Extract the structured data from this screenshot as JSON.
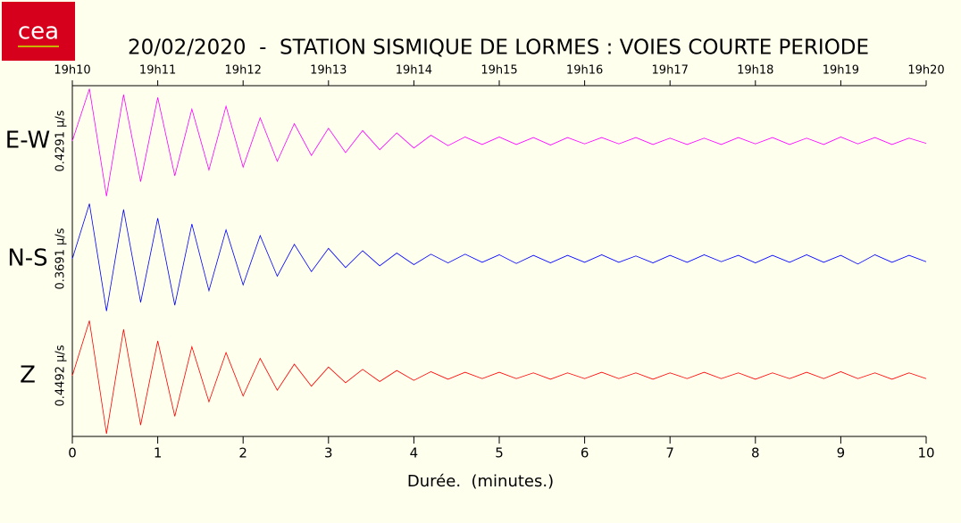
{
  "logo": "cea",
  "chart_data": {
    "type": "seismogram",
    "title": "20/02/2020  -  STATION SISMIQUE DE LORMES : VOIES COURTE PERIODE",
    "x_label": "Durée.  (minutes.)",
    "xlim": [
      0,
      10
    ],
    "xticks": [
      0,
      1,
      2,
      3,
      4,
      5,
      6,
      7,
      8,
      9,
      10
    ],
    "x2ticks": [
      {
        "value": 0,
        "label": "19h10"
      },
      {
        "value": 1,
        "label": "19h11"
      },
      {
        "value": 2,
        "label": "19h12"
      },
      {
        "value": 3,
        "label": "19h13"
      },
      {
        "value": 4,
        "label": "19h14"
      },
      {
        "value": 5,
        "label": "19h15"
      },
      {
        "value": 6,
        "label": "19h16"
      },
      {
        "value": 7,
        "label": "19h17"
      },
      {
        "value": 8,
        "label": "19h18"
      },
      {
        "value": 9,
        "label": "19h19"
      },
      {
        "value": 10,
        "label": "19h20"
      }
    ],
    "ylim": [
      -1,
      1
    ],
    "x": [
      0,
      0.2,
      0.4,
      0.6,
      0.8,
      1,
      1.2,
      1.4,
      1.6,
      1.8,
      2,
      2.2,
      2.4,
      2.6,
      2.8,
      3,
      3.2,
      3.4,
      3.6,
      3.8,
      4,
      4.2,
      4.4,
      4.6,
      4.8,
      5,
      5.2,
      5.4,
      5.6,
      5.8,
      6,
      6.2,
      6.4,
      6.6,
      6.8,
      7,
      7.2,
      7.4,
      7.6,
      7.8,
      8,
      8.2,
      8.4,
      8.6,
      8.8,
      9,
      9.2,
      9.4,
      9.6,
      9.8,
      10
    ],
    "series": [
      {
        "name": "E-W",
        "scale": "0.4291 µ/s",
        "color": "#ff00ff",
        "values": [
          0,
          0.9,
          -0.95,
          0.8,
          -0.7,
          0.75,
          -0.6,
          0.55,
          -0.5,
          0.6,
          -0.45,
          0.4,
          -0.35,
          0.3,
          -0.25,
          0.22,
          -0.2,
          0.18,
          -0.15,
          0.14,
          -0.12,
          0.1,
          -0.08,
          0.07,
          -0.06,
          0.07,
          -0.06,
          0.06,
          -0.07,
          0.06,
          -0.05,
          0.06,
          -0.05,
          0.06,
          -0.06,
          0.05,
          -0.06,
          0.05,
          -0.06,
          0.06,
          -0.05,
          0.06,
          -0.06,
          0.05,
          -0.06,
          0.07,
          -0.05,
          0.06,
          -0.06,
          0.05,
          -0.04
        ]
      },
      {
        "name": "N-S",
        "scale": "0.3691 µ/s",
        "color": "#0000ff",
        "values": [
          0,
          0.95,
          -0.9,
          0.85,
          -0.75,
          0.7,
          -0.8,
          0.6,
          -0.55,
          0.5,
          -0.45,
          0.4,
          -0.3,
          0.25,
          -0.22,
          0.18,
          -0.15,
          0.14,
          -0.12,
          0.1,
          -0.1,
          0.08,
          -0.07,
          0.08,
          -0.06,
          0.07,
          -0.08,
          0.06,
          -0.07,
          0.06,
          -0.06,
          0.07,
          -0.06,
          0.05,
          -0.07,
          0.06,
          -0.06,
          0.07,
          -0.05,
          0.06,
          -0.07,
          0.06,
          -0.06,
          0.07,
          -0.06,
          0.06,
          -0.09,
          0.07,
          -0.06,
          0.06,
          -0.05
        ]
      },
      {
        "name": "Z",
        "scale": "0.4492 µ/s",
        "color": "#ff0000",
        "values": [
          0,
          0.95,
          -1,
          0.8,
          -0.85,
          0.6,
          -0.7,
          0.5,
          -0.45,
          0.4,
          -0.35,
          0.3,
          -0.25,
          0.2,
          -0.18,
          0.15,
          -0.12,
          0.11,
          -0.1,
          0.09,
          -0.08,
          0.07,
          -0.06,
          0.06,
          -0.05,
          0.06,
          -0.05,
          0.05,
          -0.06,
          0.05,
          -0.05,
          0.06,
          -0.05,
          0.05,
          -0.06,
          0.05,
          -0.05,
          0.06,
          -0.05,
          0.05,
          -0.06,
          0.05,
          -0.05,
          0.06,
          -0.05,
          0.07,
          -0.05,
          0.05,
          -0.06,
          0.05,
          -0.05
        ]
      }
    ]
  }
}
